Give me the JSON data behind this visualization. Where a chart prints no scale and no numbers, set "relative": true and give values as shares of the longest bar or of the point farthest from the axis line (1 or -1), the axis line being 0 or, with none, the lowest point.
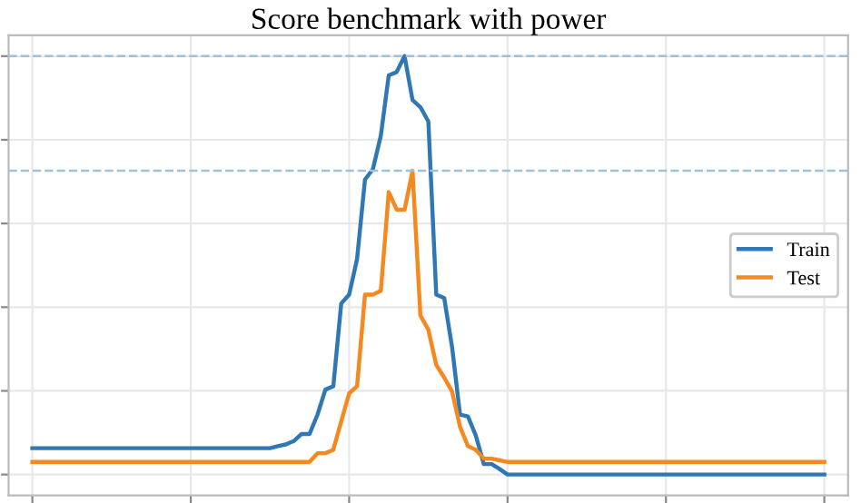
{
  "chart_data": {
    "type": "line",
    "title": "Score benchmark with power",
    "relative": true,
    "grid": true,
    "legend": "right",
    "categories": [
      null,
      null,
      null,
      null,
      null,
      null,
      null,
      null,
      null,
      null,
      null,
      null,
      null,
      null,
      null,
      null,
      null,
      null,
      null,
      null,
      null,
      null,
      null,
      null,
      null,
      null,
      null,
      null,
      null,
      null,
      null,
      null,
      null,
      null,
      null,
      null,
      null,
      null,
      null,
      null,
      null,
      null,
      null,
      null,
      null,
      null,
      null,
      null,
      null,
      null,
      null,
      null,
      null,
      null,
      null,
      null,
      null,
      null,
      null,
      null,
      null,
      null,
      null,
      null,
      null,
      null,
      null,
      null,
      null,
      null,
      null,
      null,
      null,
      null,
      null,
      null,
      null,
      null,
      null,
      null,
      null,
      null,
      null,
      null,
      null,
      null,
      null,
      null,
      null,
      null,
      null,
      null,
      null,
      null,
      null,
      null,
      null,
      null,
      null,
      null,
      null
    ],
    "series": [
      {
        "name": "Train",
        "color": "#2f78b5",
        "values": [
          0.063,
          0.063,
          0.063,
          0.063,
          0.063,
          0.063,
          0.063,
          0.063,
          0.063,
          0.063,
          0.063,
          0.063,
          0.063,
          0.063,
          0.063,
          0.063,
          0.063,
          0.063,
          0.063,
          0.063,
          0.063,
          0.063,
          0.063,
          0.063,
          0.063,
          0.063,
          0.063,
          0.063,
          0.063,
          0.063,
          0.063,
          0.068,
          0.072,
          0.08,
          0.097,
          0.097,
          0.143,
          0.203,
          0.211,
          0.409,
          0.43,
          0.515,
          0.705,
          0.73,
          0.81,
          0.954,
          0.962,
          1.0,
          0.895,
          0.878,
          0.844,
          0.43,
          0.422,
          0.304,
          0.143,
          0.139,
          0.093,
          0.025,
          0.025,
          0.013,
          0,
          0,
          0,
          0,
          0,
          0,
          0,
          0,
          0,
          0,
          0,
          0,
          0,
          0,
          0,
          0,
          0,
          0,
          0,
          0,
          0,
          0,
          0,
          0,
          0,
          0,
          0,
          0,
          0,
          0,
          0,
          0,
          0,
          0,
          0,
          0,
          0,
          0,
          0,
          0,
          0
        ]
      },
      {
        "name": "Test",
        "color": "#f5891f",
        "values": [
          0.03,
          0.03,
          0.03,
          0.03,
          0.03,
          0.03,
          0.03,
          0.03,
          0.03,
          0.03,
          0.03,
          0.03,
          0.03,
          0.03,
          0.03,
          0.03,
          0.03,
          0.03,
          0.03,
          0.03,
          0.03,
          0.03,
          0.03,
          0.03,
          0.03,
          0.03,
          0.03,
          0.03,
          0.03,
          0.03,
          0.03,
          0.03,
          0.03,
          0.03,
          0.03,
          0.03,
          0.051,
          0.051,
          0.059,
          0.127,
          0.194,
          0.211,
          0.43,
          0.43,
          0.439,
          0.675,
          0.633,
          0.633,
          0.726,
          0.38,
          0.346,
          0.262,
          0.232,
          0.198,
          0.114,
          0.068,
          0.059,
          0.038,
          0.038,
          0.034,
          0.03,
          0.03,
          0.03,
          0.03,
          0.03,
          0.03,
          0.03,
          0.03,
          0.03,
          0.03,
          0.03,
          0.03,
          0.03,
          0.03,
          0.03,
          0.03,
          0.03,
          0.03,
          0.03,
          0.03,
          0.03,
          0.03,
          0.03,
          0.03,
          0.03,
          0.03,
          0.03,
          0.03,
          0.03,
          0.03,
          0.03,
          0.03,
          0.03,
          0.03,
          0.03,
          0.03,
          0.03,
          0.03,
          0.03,
          0.03,
          0.03
        ]
      }
    ],
    "ref_lines": [
      {
        "axis": "y",
        "value": 1.0,
        "label": null,
        "color": "#9fc2d8",
        "line_style": "dashed"
      },
      {
        "axis": "y",
        "value": 0.726,
        "label": null,
        "color": "#9fc2d8",
        "line_style": "dashed"
      }
    ]
  }
}
